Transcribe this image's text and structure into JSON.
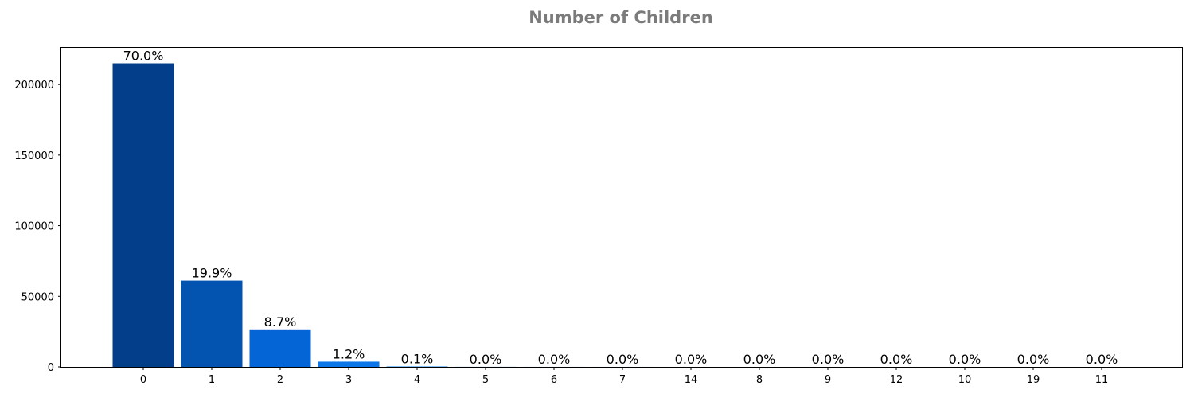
{
  "chart_data": {
    "type": "bar",
    "title": "Number of Children",
    "xlabel": "",
    "ylabel": "",
    "categories": [
      "0",
      "1",
      "2",
      "3",
      "4",
      "5",
      "6",
      "7",
      "14",
      "8",
      "9",
      "12",
      "10",
      "19",
      "11"
    ],
    "values": [
      215000,
      61100,
      26600,
      3700,
      300,
      60,
      30,
      15,
      10,
      8,
      6,
      4,
      3,
      2,
      1
    ],
    "labels": [
      "70.0%",
      "19.9%",
      "8.7%",
      "1.2%",
      "0.1%",
      "0.0%",
      "0.0%",
      "0.0%",
      "0.0%",
      "0.0%",
      "0.0%",
      "0.0%",
      "0.0%",
      "0.0%",
      "0.0%"
    ],
    "colors": [
      "#023e8a",
      "#0353b0",
      "#0466d6",
      "#0a76e8",
      "#1a85f0",
      "#2a91f2",
      "#3a9cf4",
      "#4aa7f6",
      "#5ab2f7",
      "#6abcf8",
      "#7ac6f9",
      "#8acffa",
      "#9ad8fb",
      "#aae1fc",
      "#baeafd"
    ],
    "yticks": [
      0,
      50000,
      100000,
      150000,
      200000
    ],
    "ylim": [
      0,
      226000
    ],
    "grid": false,
    "legend": "none"
  }
}
